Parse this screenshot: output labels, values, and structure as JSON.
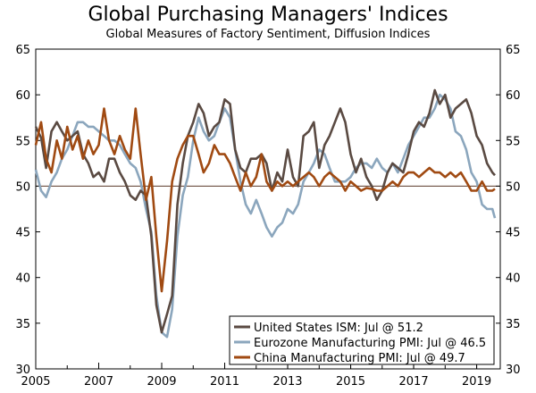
{
  "chart_data": {
    "type": "line",
    "title": "Global Purchasing Managers' Indices",
    "subtitle": "Global Measures of Factory Sentiment, Diffusion Indices",
    "xlabel": "",
    "ylabel": "",
    "xlim": [
      2005,
      2019.75
    ],
    "ylim": [
      30,
      65
    ],
    "x_ticks": [
      2005,
      2007,
      2009,
      2011,
      2013,
      2015,
      2017,
      2019
    ],
    "x_tick_labels": [
      "2005",
      "2007",
      "2009",
      "2011",
      "2013",
      "2015",
      "2017",
      "2019"
    ],
    "y_ticks": [
      30,
      35,
      40,
      45,
      50,
      55,
      60,
      65
    ],
    "y_tick_labels": [
      "30",
      "35",
      "40",
      "45",
      "50",
      "55",
      "60",
      "65"
    ],
    "reference_line": 50,
    "legend_position": "bottom-right",
    "series": [
      {
        "name": "United States ISM",
        "legend_label": "United States ISM: Jul @ 51.2",
        "color": "#5a4a42",
        "points": [
          [
            2005.0,
            56.5
          ],
          [
            2005.17,
            55.3
          ],
          [
            2005.33,
            52.0
          ],
          [
            2005.5,
            56.0
          ],
          [
            2005.67,
            57.0
          ],
          [
            2005.83,
            56.0
          ],
          [
            2006.0,
            55.0
          ],
          [
            2006.17,
            55.5
          ],
          [
            2006.33,
            56.0
          ],
          [
            2006.5,
            53.5
          ],
          [
            2006.67,
            52.5
          ],
          [
            2006.83,
            51.0
          ],
          [
            2007.0,
            51.5
          ],
          [
            2007.17,
            50.5
          ],
          [
            2007.33,
            53.0
          ],
          [
            2007.5,
            53.0
          ],
          [
            2007.67,
            51.5
          ],
          [
            2007.83,
            50.5
          ],
          [
            2008.0,
            49.0
          ],
          [
            2008.17,
            48.5
          ],
          [
            2008.33,
            49.5
          ],
          [
            2008.5,
            49.0
          ],
          [
            2008.67,
            44.5
          ],
          [
            2008.83,
            37.0
          ],
          [
            2009.0,
            34.0
          ],
          [
            2009.17,
            36.0
          ],
          [
            2009.33,
            38.0
          ],
          [
            2009.5,
            48.0
          ],
          [
            2009.67,
            52.5
          ],
          [
            2009.83,
            55.5
          ],
          [
            2010.0,
            57.0
          ],
          [
            2010.17,
            59.0
          ],
          [
            2010.33,
            58.0
          ],
          [
            2010.5,
            55.5
          ],
          [
            2010.67,
            56.5
          ],
          [
            2010.83,
            57.0
          ],
          [
            2011.0,
            59.5
          ],
          [
            2011.17,
            59.0
          ],
          [
            2011.33,
            54.0
          ],
          [
            2011.5,
            52.0
          ],
          [
            2011.67,
            51.5
          ],
          [
            2011.83,
            53.0
          ],
          [
            2012.0,
            53.0
          ],
          [
            2012.17,
            53.5
          ],
          [
            2012.33,
            52.5
          ],
          [
            2012.5,
            49.5
          ],
          [
            2012.67,
            51.5
          ],
          [
            2012.83,
            50.5
          ],
          [
            2013.0,
            54.0
          ],
          [
            2013.17,
            51.0
          ],
          [
            2013.33,
            50.0
          ],
          [
            2013.5,
            55.5
          ],
          [
            2013.67,
            56.0
          ],
          [
            2013.83,
            57.0
          ],
          [
            2014.0,
            52.0
          ],
          [
            2014.17,
            54.5
          ],
          [
            2014.33,
            55.5
          ],
          [
            2014.5,
            57.0
          ],
          [
            2014.67,
            58.5
          ],
          [
            2014.83,
            57.0
          ],
          [
            2015.0,
            53.5
          ],
          [
            2015.17,
            51.5
          ],
          [
            2015.33,
            53.0
          ],
          [
            2015.5,
            51.0
          ],
          [
            2015.67,
            50.0
          ],
          [
            2015.83,
            48.5
          ],
          [
            2016.0,
            49.5
          ],
          [
            2016.17,
            51.5
          ],
          [
            2016.33,
            52.5
          ],
          [
            2016.5,
            52.0
          ],
          [
            2016.67,
            51.5
          ],
          [
            2016.83,
            53.5
          ],
          [
            2017.0,
            56.0
          ],
          [
            2017.17,
            57.0
          ],
          [
            2017.33,
            56.5
          ],
          [
            2017.5,
            58.0
          ],
          [
            2017.67,
            60.5
          ],
          [
            2017.83,
            59.0
          ],
          [
            2018.0,
            60.0
          ],
          [
            2018.17,
            57.5
          ],
          [
            2018.33,
            58.5
          ],
          [
            2018.5,
            59.0
          ],
          [
            2018.67,
            59.5
          ],
          [
            2018.83,
            58.0
          ],
          [
            2019.0,
            55.5
          ],
          [
            2019.17,
            54.5
          ],
          [
            2019.33,
            52.5
          ],
          [
            2019.5,
            51.5
          ],
          [
            2019.58,
            51.2
          ]
        ]
      },
      {
        "name": "Eurozone Manufacturing PMI",
        "legend_label": "Eurozone Manufacturing PMI: Jul @ 46.5",
        "color": "#8ba6bd",
        "points": [
          [
            2005.0,
            51.8
          ],
          [
            2005.17,
            49.5
          ],
          [
            2005.33,
            48.8
          ],
          [
            2005.5,
            50.5
          ],
          [
            2005.67,
            51.5
          ],
          [
            2005.83,
            53.0
          ],
          [
            2006.0,
            54.0
          ],
          [
            2006.17,
            55.5
          ],
          [
            2006.33,
            57.0
          ],
          [
            2006.5,
            57.0
          ],
          [
            2006.67,
            56.5
          ],
          [
            2006.83,
            56.5
          ],
          [
            2007.0,
            56.0
          ],
          [
            2007.17,
            55.5
          ],
          [
            2007.33,
            55.0
          ],
          [
            2007.5,
            55.0
          ],
          [
            2007.67,
            54.5
          ],
          [
            2007.83,
            53.5
          ],
          [
            2008.0,
            52.5
          ],
          [
            2008.17,
            52.0
          ],
          [
            2008.33,
            50.5
          ],
          [
            2008.5,
            47.5
          ],
          [
            2008.67,
            45.0
          ],
          [
            2008.83,
            38.0
          ],
          [
            2009.0,
            34.0
          ],
          [
            2009.17,
            33.5
          ],
          [
            2009.33,
            36.5
          ],
          [
            2009.5,
            44.5
          ],
          [
            2009.67,
            49.0
          ],
          [
            2009.83,
            51.0
          ],
          [
            2010.0,
            55.0
          ],
          [
            2010.17,
            57.5
          ],
          [
            2010.33,
            56.0
          ],
          [
            2010.5,
            55.0
          ],
          [
            2010.67,
            55.5
          ],
          [
            2010.83,
            57.0
          ],
          [
            2011.0,
            58.5
          ],
          [
            2011.17,
            57.5
          ],
          [
            2011.33,
            54.0
          ],
          [
            2011.5,
            50.5
          ],
          [
            2011.67,
            48.0
          ],
          [
            2011.83,
            47.0
          ],
          [
            2012.0,
            48.5
          ],
          [
            2012.17,
            47.0
          ],
          [
            2012.33,
            45.5
          ],
          [
            2012.5,
            44.5
          ],
          [
            2012.67,
            45.5
          ],
          [
            2012.83,
            46.0
          ],
          [
            2013.0,
            47.5
          ],
          [
            2013.17,
            47.0
          ],
          [
            2013.33,
            48.0
          ],
          [
            2013.5,
            50.5
          ],
          [
            2013.67,
            51.5
          ],
          [
            2013.83,
            52.5
          ],
          [
            2014.0,
            54.0
          ],
          [
            2014.17,
            53.5
          ],
          [
            2014.33,
            52.0
          ],
          [
            2014.5,
            50.5
          ],
          [
            2014.67,
            50.5
          ],
          [
            2014.83,
            50.5
          ],
          [
            2015.0,
            51.0
          ],
          [
            2015.17,
            52.0
          ],
          [
            2015.33,
            52.5
          ],
          [
            2015.5,
            52.5
          ],
          [
            2015.67,
            52.0
          ],
          [
            2015.83,
            53.0
          ],
          [
            2016.0,
            52.0
          ],
          [
            2016.17,
            51.5
          ],
          [
            2016.33,
            52.5
          ],
          [
            2016.5,
            51.5
          ],
          [
            2016.67,
            53.0
          ],
          [
            2016.83,
            54.5
          ],
          [
            2017.0,
            55.5
          ],
          [
            2017.17,
            56.5
          ],
          [
            2017.33,
            57.5
          ],
          [
            2017.5,
            57.5
          ],
          [
            2017.67,
            58.5
          ],
          [
            2017.83,
            60.0
          ],
          [
            2018.0,
            59.5
          ],
          [
            2018.17,
            58.5
          ],
          [
            2018.33,
            56.0
          ],
          [
            2018.5,
            55.5
          ],
          [
            2018.67,
            54.0
          ],
          [
            2018.83,
            51.5
          ],
          [
            2019.0,
            50.5
          ],
          [
            2019.17,
            48.0
          ],
          [
            2019.33,
            47.5
          ],
          [
            2019.5,
            47.5
          ],
          [
            2019.58,
            46.5
          ]
        ]
      },
      {
        "name": "China Manufacturing PMI",
        "legend_label": "China Manufacturing PMI: Jul @ 49.7",
        "color": "#a04a12",
        "points": [
          [
            2005.0,
            54.5
          ],
          [
            2005.17,
            57.0
          ],
          [
            2005.33,
            53.0
          ],
          [
            2005.5,
            51.5
          ],
          [
            2005.67,
            55.0
          ],
          [
            2005.83,
            53.0
          ],
          [
            2006.0,
            56.5
          ],
          [
            2006.17,
            54.0
          ],
          [
            2006.33,
            55.5
          ],
          [
            2006.5,
            53.0
          ],
          [
            2006.67,
            55.0
          ],
          [
            2006.83,
            53.5
          ],
          [
            2007.0,
            54.5
          ],
          [
            2007.17,
            58.5
          ],
          [
            2007.33,
            55.0
          ],
          [
            2007.5,
            53.5
          ],
          [
            2007.67,
            55.5
          ],
          [
            2007.83,
            54.0
          ],
          [
            2008.0,
            53.0
          ],
          [
            2008.17,
            58.5
          ],
          [
            2008.33,
            53.5
          ],
          [
            2008.5,
            48.5
          ],
          [
            2008.67,
            51.0
          ],
          [
            2008.83,
            44.5
          ],
          [
            2009.0,
            38.5
          ],
          [
            2009.17,
            44.0
          ],
          [
            2009.33,
            50.5
          ],
          [
            2009.5,
            53.0
          ],
          [
            2009.67,
            54.5
          ],
          [
            2009.83,
            55.5
          ],
          [
            2010.0,
            55.5
          ],
          [
            2010.17,
            53.5
          ],
          [
            2010.33,
            51.5
          ],
          [
            2010.5,
            52.5
          ],
          [
            2010.67,
            54.5
          ],
          [
            2010.83,
            53.5
          ],
          [
            2011.0,
            53.5
          ],
          [
            2011.17,
            52.5
          ],
          [
            2011.33,
            51.0
          ],
          [
            2011.5,
            49.5
          ],
          [
            2011.67,
            51.5
          ],
          [
            2011.83,
            50.0
          ],
          [
            2012.0,
            51.0
          ],
          [
            2012.17,
            53.5
          ],
          [
            2012.33,
            50.5
          ],
          [
            2012.5,
            49.5
          ],
          [
            2012.67,
            50.5
          ],
          [
            2012.83,
            50.0
          ],
          [
            2013.0,
            50.5
          ],
          [
            2013.17,
            50.0
          ],
          [
            2013.33,
            50.5
          ],
          [
            2013.5,
            51.0
          ],
          [
            2013.67,
            51.5
          ],
          [
            2013.83,
            51.0
          ],
          [
            2014.0,
            50.0
          ],
          [
            2014.17,
            51.0
          ],
          [
            2014.33,
            51.5
          ],
          [
            2014.5,
            51.0
          ],
          [
            2014.67,
            50.5
          ],
          [
            2014.83,
            49.5
          ],
          [
            2015.0,
            50.5
          ],
          [
            2015.17,
            50.0
          ],
          [
            2015.33,
            49.5
          ],
          [
            2015.5,
            49.8
          ],
          [
            2015.67,
            49.7
          ],
          [
            2015.83,
            49.5
          ],
          [
            2016.0,
            49.5
          ],
          [
            2016.17,
            50.0
          ],
          [
            2016.33,
            50.5
          ],
          [
            2016.5,
            50.0
          ],
          [
            2016.67,
            51.0
          ],
          [
            2016.83,
            51.5
          ],
          [
            2017.0,
            51.5
          ],
          [
            2017.17,
            51.0
          ],
          [
            2017.33,
            51.5
          ],
          [
            2017.5,
            52.0
          ],
          [
            2017.67,
            51.5
          ],
          [
            2017.83,
            51.5
          ],
          [
            2018.0,
            51.0
          ],
          [
            2018.17,
            51.5
          ],
          [
            2018.33,
            51.0
          ],
          [
            2018.5,
            51.5
          ],
          [
            2018.67,
            50.5
          ],
          [
            2018.83,
            49.5
          ],
          [
            2019.0,
            49.5
          ],
          [
            2019.17,
            50.5
          ],
          [
            2019.33,
            49.5
          ],
          [
            2019.5,
            49.5
          ],
          [
            2019.58,
            49.7
          ]
        ]
      }
    ]
  }
}
